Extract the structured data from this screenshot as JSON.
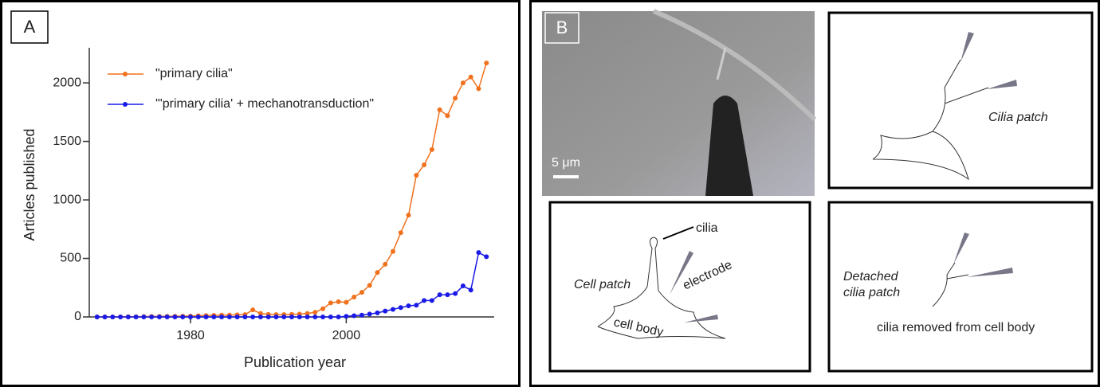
{
  "chart_data": {
    "type": "line",
    "panel_label": "A",
    "x_label": "Publication year",
    "y_label": "Articles published",
    "x": [
      1968,
      1969,
      1970,
      1971,
      1972,
      1973,
      1974,
      1975,
      1976,
      1977,
      1978,
      1979,
      1980,
      1981,
      1982,
      1983,
      1984,
      1985,
      1986,
      1987,
      1988,
      1989,
      1990,
      1991,
      1992,
      1993,
      1994,
      1995,
      1996,
      1997,
      1998,
      1999,
      2000,
      2001,
      2002,
      2003,
      2004,
      2005,
      2006,
      2007,
      2008,
      2009,
      2010,
      2011,
      2012,
      2013,
      2014,
      2015,
      2016,
      2017,
      2018
    ],
    "series": [
      {
        "name": "\"primary cilia\"",
        "color": "#f0711e",
        "values": [
          0,
          0,
          0,
          1,
          2,
          2,
          3,
          4,
          4,
          5,
          6,
          7,
          8,
          10,
          12,
          14,
          15,
          16,
          18,
          20,
          60,
          30,
          22,
          20,
          20,
          22,
          25,
          30,
          40,
          70,
          120,
          130,
          125,
          170,
          210,
          270,
          380,
          450,
          560,
          720,
          870,
          1210,
          1300,
          1430,
          1770,
          1720,
          1870,
          2000,
          2050,
          1950,
          2170
        ]
      },
      {
        "name": "'\"primary cilia' + mechanotransduction\"",
        "color": "#1a1ae6",
        "values": [
          0,
          0,
          0,
          0,
          0,
          0,
          0,
          0,
          0,
          0,
          0,
          0,
          0,
          0,
          0,
          0,
          0,
          0,
          0,
          0,
          0,
          0,
          0,
          0,
          0,
          0,
          0,
          0,
          0,
          0,
          0,
          0,
          5,
          10,
          15,
          25,
          35,
          50,
          65,
          80,
          95,
          100,
          140,
          140,
          190,
          190,
          200,
          265,
          230,
          550,
          515
        ]
      }
    ],
    "xlim": [
      1967,
      2019
    ],
    "xticks": [
      1980,
      2000
    ],
    "ylim": [
      0,
      2300
    ],
    "yticks": [
      0,
      500,
      1000,
      1500,
      2000
    ]
  },
  "panel_b": {
    "label": "B",
    "scale_bar": "5 μm",
    "diagrams": {
      "cilia_patch": "Cilia patch",
      "cilia": "cilia",
      "cell_patch": "Cell patch",
      "electrode": "electrode",
      "cell_body": "cell body",
      "detached_line1": "Detached",
      "detached_line2": "cilia patch",
      "removed": "cilia removed from cell body"
    }
  }
}
